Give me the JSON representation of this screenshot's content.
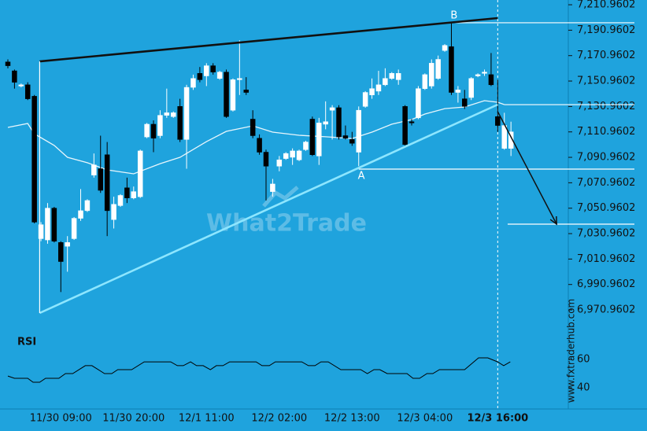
{
  "chart_data": {
    "type": "candlestick",
    "categories": [
      null,
      null,
      null,
      null,
      null,
      null,
      null,
      null,
      "11/30 09:00",
      null,
      null,
      null,
      null,
      null,
      null,
      null,
      null,
      null,
      null,
      "11/30 20:00",
      null,
      null,
      null,
      null,
      null,
      null,
      null,
      null,
      null,
      null,
      "12/1 11:00",
      null,
      null,
      null,
      null,
      null,
      null,
      null,
      null,
      null,
      null,
      "12/2 02:00",
      null,
      null,
      null,
      null,
      null,
      null,
      null,
      null,
      null,
      null,
      "12/2 13:00",
      null,
      null,
      null,
      null,
      null,
      null,
      null,
      null,
      null,
      null,
      "12/3 04:00",
      null,
      null,
      null,
      null,
      null,
      null,
      null,
      null,
      null,
      null,
      "12/3 16:00",
      null,
      null
    ],
    "open": [
      7166,
      7159,
      7147,
      7148,
      7139,
      7027,
      7026,
      7051,
      7024,
      7021,
      7027,
      7043,
      7049,
      7077,
      7082,
      7093,
      7042,
      7053,
      7067,
      7059,
      7060,
      7107,
      7117,
      7108,
      7124,
      7123,
      7131,
      7105,
      7146,
      7157,
      7155,
      7163,
      7153,
      7158,
      7128,
      7152,
      7144,
      7121,
      7106,
      7095,
      7064,
      7084,
      7090,
      7091,
      7089,
      7097,
      7121,
      7092,
      7117,
      7128,
      7130,
      7108,
      7105,
      7095,
      7131,
      7140,
      7143,
      7148,
      7153,
      7152,
      7131,
      7119,
      7122,
      7145,
      7147,
      7153,
      7175,
      7178,
      7142,
      7137,
      7138,
      7155,
      7157,
      7156,
      7123,
      7098,
      7098
    ],
    "high": [
      7168,
      7160,
      7149,
      7150,
      7140,
      7040,
      7055,
      7052,
      7025,
      7029,
      7044,
      7066,
      7058,
      7094,
      7108,
      7103,
      7060,
      7062,
      7075,
      7068,
      7097,
      7118,
      7120,
      7128,
      7145,
      7127,
      7137,
      7148,
      7156,
      7162,
      7165,
      7165,
      7159,
      7160,
      7153,
      7183,
      7154,
      7128,
      7109,
      7097,
      7074,
      7092,
      7095,
      7098,
      7097,
      7104,
      7123,
      7122,
      7135,
      7132,
      7132,
      7116,
      7111,
      7131,
      7143,
      7153,
      7159,
      7161,
      7158,
      7160,
      7132,
      7121,
      7147,
      7157,
      7168,
      7171,
      7180,
      7197,
      7147,
      7144,
      7154,
      7157,
      7160,
      7173,
      7152,
      7126,
      7119
    ],
    "low": [
      7161,
      7145,
      7146,
      7136,
      7039,
      7025,
      7023,
      7024,
      6985,
      7001,
      7026,
      7041,
      7048,
      7075,
      7063,
      7029,
      7035,
      7052,
      7055,
      7058,
      7059,
      7106,
      7095,
      7106,
      7122,
      7122,
      7103,
      7082,
      7144,
      7150,
      7147,
      7156,
      7152,
      7122,
      7127,
      7140,
      7140,
      7106,
      7093,
      7057,
      7060,
      7080,
      7089,
      7085,
      7088,
      7096,
      7092,
      7085,
      7113,
      7105,
      7105,
      7105,
      7100,
      7084,
      7130,
      7137,
      7140,
      7147,
      7152,
      7148,
      7100,
      7116,
      7121,
      7144,
      7145,
      7152,
      7174,
      7140,
      7134,
      7129,
      7136,
      7154,
      7155,
      7147,
      7111,
      7097,
      7092
    ],
    "close": [
      7163,
      7150,
      7148,
      7137,
      7040,
      7038,
      7051,
      7025,
      7009,
      7024,
      7043,
      7049,
      7057,
      7085,
      7065,
      7049,
      7054,
      7061,
      7059,
      7064,
      7096,
      7117,
      7106,
      7124,
      7126,
      7126,
      7105,
      7146,
      7153,
      7152,
      7163,
      7158,
      7158,
      7123,
      7152,
      7153,
      7142,
      7108,
      7095,
      7084,
      7070,
      7089,
      7094,
      7096,
      7096,
      7103,
      7093,
      7118,
      7119,
      7130,
      7107,
      7106,
      7102,
      7128,
      7142,
      7145,
      7148,
      7153,
      7157,
      7157,
      7101,
      7118,
      7145,
      7156,
      7165,
      7168,
      7179,
      7142,
      7144,
      7131,
      7153,
      7156,
      7158,
      7148,
      7116,
      7116,
      7111
    ],
    "ylim": [
      6954.9,
      7214.7
    ],
    "yticks": [
      {
        "value": 6970.9602,
        "label": "6,970.9602"
      },
      {
        "value": 6990.9602,
        "label": "6,990.9602"
      },
      {
        "value": 7010.9602,
        "label": "7,010.9602"
      },
      {
        "value": 7030.9602,
        "label": "7,030.9602"
      },
      {
        "value": 7050.9602,
        "label": "7,050.9602"
      },
      {
        "value": 7070.9602,
        "label": "7,070.9602"
      },
      {
        "value": 7090.9602,
        "label": "7,090.9602"
      },
      {
        "value": 7110.9602,
        "label": "7,110.9602"
      },
      {
        "value": 7130.9602,
        "label": "7,130.9602"
      },
      {
        "value": 7150.9602,
        "label": "7,150.9602"
      },
      {
        "value": 7170.9602,
        "label": "7,170.9602"
      },
      {
        "value": 7190.9602,
        "label": "7,190.9602"
      },
      {
        "value": 7210.9602,
        "label": "7,210.9602"
      }
    ],
    "up_color": "#ffffff",
    "down_color": "#000000",
    "moving_average": {
      "color": "#e8f6fc",
      "x": [
        0,
        3,
        4,
        7,
        9,
        12,
        15,
        19,
        23,
        26,
        30,
        33,
        37,
        40,
        44,
        48,
        52,
        55,
        58,
        61,
        63,
        66,
        69,
        72,
        74,
        75
      ],
      "values": [
        7114.5,
        7117.6,
        7109.5,
        7100.3,
        7091.0,
        7086.7,
        7081.1,
        7078.0,
        7086.0,
        7091.0,
        7103.3,
        7111.4,
        7115.7,
        7110.8,
        7108.3,
        7107.1,
        7105.8,
        7110.8,
        7117.0,
        7120.7,
        7125.0,
        7129.3,
        7130.6,
        7135.5,
        7134.3,
        7132.4
      ]
    },
    "pattern_lines": [
      {
        "color": "#111111",
        "x": [
          4.8,
          74
        ],
        "y": [
          7166.4,
          7200.5
        ]
      },
      {
        "color": "#8de6ff",
        "x": [
          4.8,
          74
        ],
        "y": [
          6968.5,
          7132.4
        ]
      },
      {
        "color": "#ffffff",
        "x": [
          4.8,
          4.8
        ],
        "y": [
          7166.4,
          6968.5
        ]
      }
    ],
    "levels": [
      {
        "value": 7196.8,
        "x": 67
      },
      {
        "value": 7081.7,
        "x": 53
      },
      {
        "value": 7132.4,
        "x": 75
      },
      {
        "value": 7038.4,
        "x": 75.5
      }
    ],
    "arrow": {
      "x": [
        74,
        82.9
      ],
      "y": [
        7126.9,
        7038.4
      ]
    },
    "annotations": [
      {
        "text": "A",
        "x": 53.4,
        "y": 7076.1
      },
      {
        "text": "B",
        "x": 67.4,
        "y": 7202.3
      }
    ],
    "watermark": "What2Trade",
    "source": "www.fxtraderhub.com",
    "rsi": {
      "title": "RSI",
      "color": "#000000",
      "ylim": [
        25,
        77.8
      ],
      "yticks": [
        40,
        60
      ],
      "x": [
        0,
        1,
        3,
        3.8,
        4.8,
        5.7,
        7.7,
        8.7,
        9.8,
        11.7,
        12.7,
        14.6,
        15.7,
        16.6,
        18.7,
        20.6,
        24.6,
        25.6,
        26.5,
        27.6,
        28.5,
        29.5,
        30.6,
        31.5,
        32.5,
        33.5,
        37.5,
        38.4,
        39.5,
        40.4,
        44.4,
        45.4,
        46.4,
        47.3,
        48.4,
        50.3,
        53.3,
        54.3,
        55.3,
        56.2,
        57.3,
        60.3,
        61.2,
        62.2,
        63.3,
        64.2,
        65.2,
        69,
        71.1,
        72.5,
        74,
        74.9,
        75.9
      ],
      "values": [
        48.3,
        46.7,
        46.7,
        43.9,
        43.9,
        46.7,
        46.7,
        50,
        50,
        55.6,
        55.6,
        50,
        50,
        52.8,
        52.8,
        58.3,
        58.3,
        55.6,
        55.6,
        58.3,
        55.6,
        55.6,
        52.8,
        55.6,
        55.6,
        58.3,
        58.3,
        55.6,
        55.6,
        58.3,
        58.3,
        55.6,
        55.6,
        58.3,
        58.3,
        52.8,
        52.8,
        50,
        52.8,
        52.8,
        50,
        50,
        46.7,
        46.7,
        50,
        50,
        52.8,
        52.8,
        61.1,
        61.1,
        58.3,
        55.6,
        58.3
      ]
    }
  }
}
